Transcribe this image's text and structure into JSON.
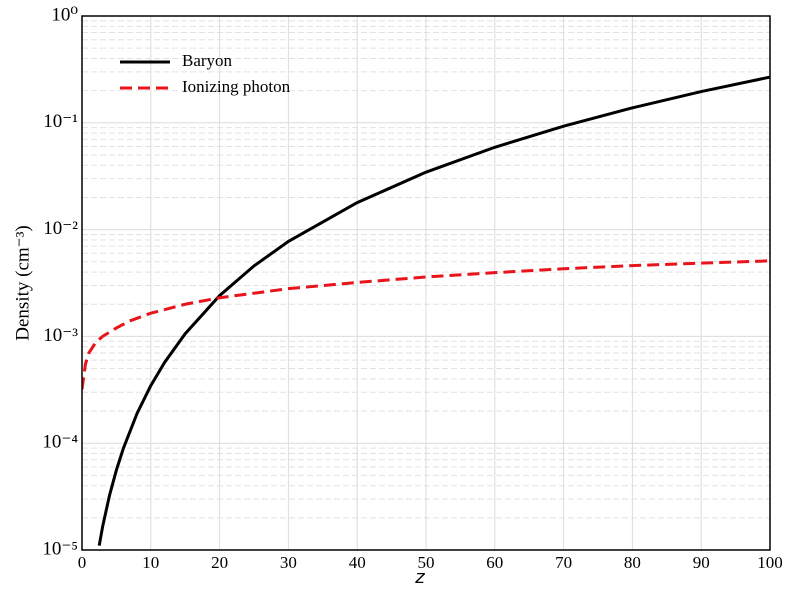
{
  "chart_data": {
    "type": "line",
    "x_label": "z",
    "y_label": "Density (cm⁻³)",
    "log_y": true,
    "grid": true,
    "legend": "upper left",
    "xlim": [
      0,
      100
    ],
    "xticks": [
      0,
      10,
      20,
      30,
      40,
      50,
      60,
      70,
      80,
      90,
      100
    ],
    "ylim": [
      1e-05,
      1
    ],
    "yticks": [
      {
        "value": 1e-05,
        "label": "10⁻⁵"
      },
      {
        "value": 0.0001,
        "label": "10⁻⁴"
      },
      {
        "value": 0.001,
        "label": "10⁻³"
      },
      {
        "value": 0.01,
        "label": "10⁻²"
      },
      {
        "value": 0.1,
        "label": "10⁻¹"
      },
      {
        "value": 1,
        "label": "10⁰"
      }
    ],
    "y_minor_ticks": [
      2e-05,
      3e-05,
      4e-05,
      5e-05,
      6e-05,
      7e-05,
      8e-05,
      9e-05,
      0.0002,
      0.0003,
      0.0004,
      0.0005,
      0.0006,
      0.0007,
      0.0008,
      0.0009,
      0.002,
      0.003,
      0.004,
      0.005,
      0.006,
      0.007,
      0.008,
      0.009,
      0.02,
      0.03,
      0.04,
      0.05,
      0.06,
      0.07,
      0.08,
      0.09,
      0.2,
      0.3,
      0.4,
      0.5,
      0.6,
      0.7,
      0.8,
      0.9
    ],
    "series": [
      {
        "name": "Baryon",
        "color": "#000000",
        "dash": false,
        "x": [
          2.5,
          3,
          4,
          5,
          6,
          8,
          10,
          12,
          15,
          20,
          25,
          30,
          40,
          50,
          60,
          70,
          80,
          90,
          100
        ],
        "values": [
          1.1e-05,
          1.66e-05,
          3.25e-05,
          5.6e-05,
          8.9e-05,
          0.00019,
          0.000346,
          0.00057,
          0.00106,
          0.00241,
          0.00457,
          0.00775,
          0.0179,
          0.0345,
          0.059,
          0.093,
          0.138,
          0.196,
          0.268
        ]
      },
      {
        "name": "Ionizing photon",
        "color": "#e8141b",
        "dash": true,
        "x": [
          0,
          0.5,
          1,
          2,
          3,
          5,
          7,
          10,
          15,
          20,
          30,
          40,
          50,
          60,
          70,
          80,
          90,
          100
        ],
        "values": [
          0.00032,
          0.00055,
          0.0007,
          0.00088,
          0.001,
          0.0012,
          0.0014,
          0.00165,
          0.002,
          0.0023,
          0.0028,
          0.0032,
          0.0036,
          0.00395,
          0.0043,
          0.0046,
          0.00485,
          0.0051
        ]
      }
    ]
  }
}
